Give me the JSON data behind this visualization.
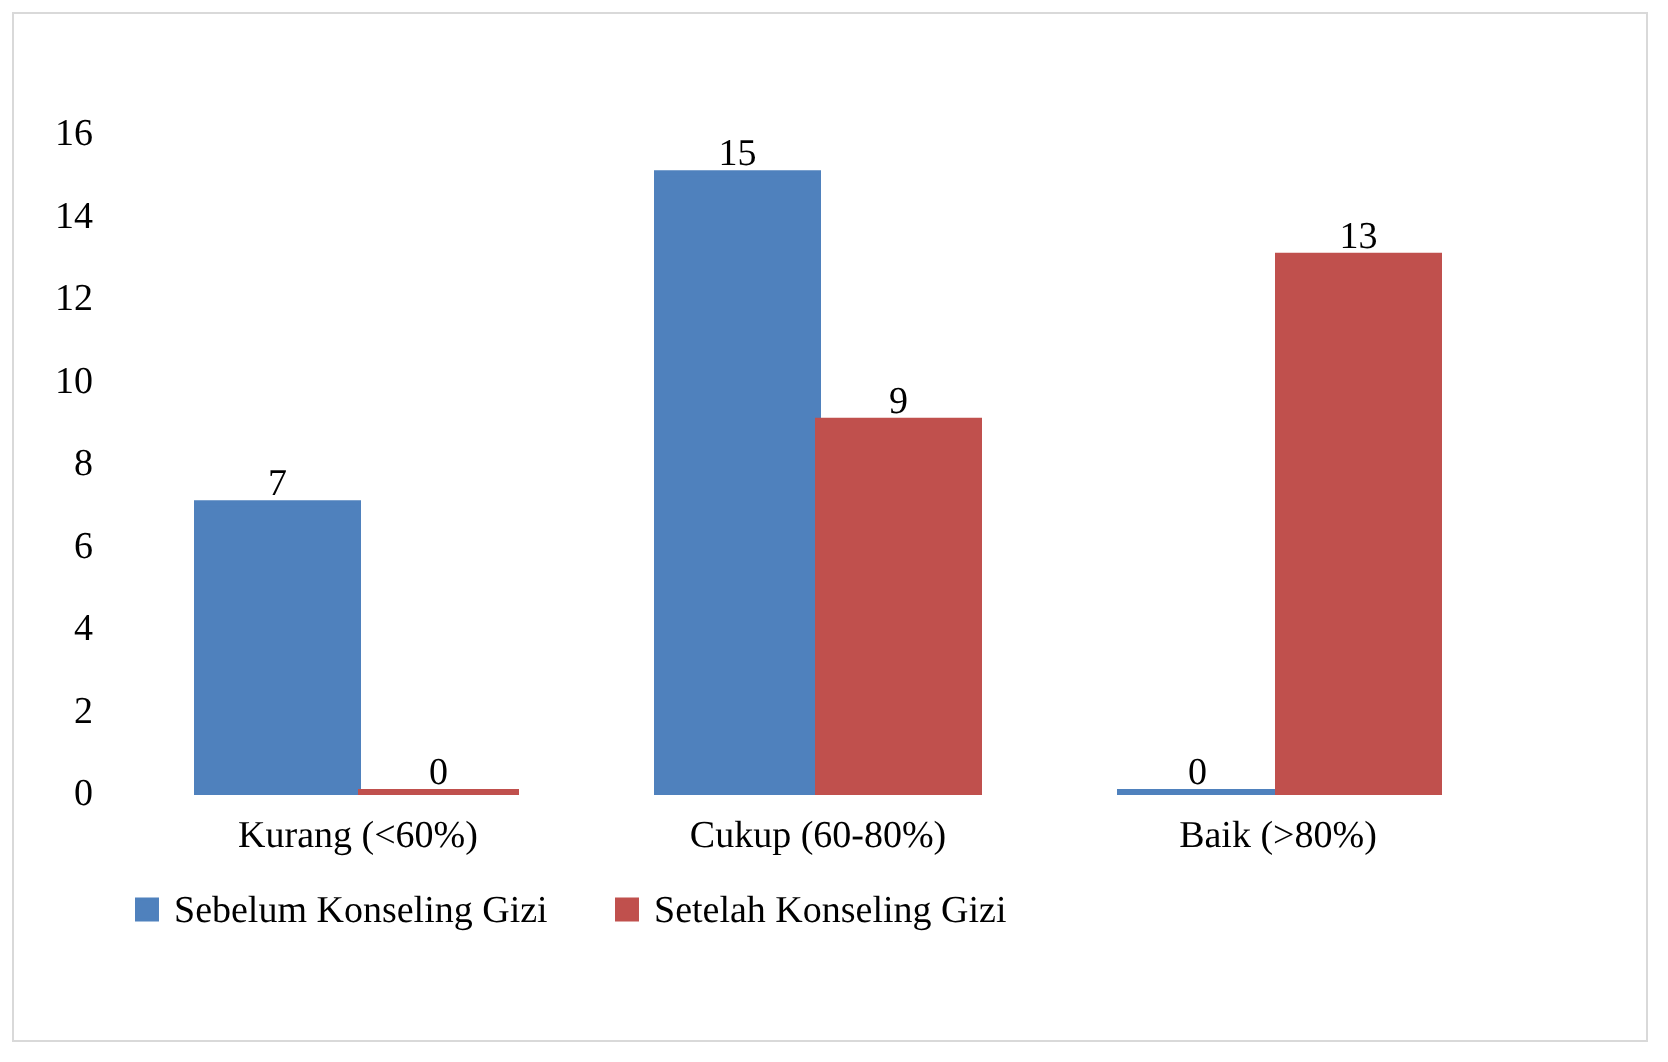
{
  "chart_data": {
    "type": "bar",
    "categories": [
      "Kurang (<60%)",
      "Cukup (60-80%)",
      "Baik (>80%)"
    ],
    "series": [
      {
        "name": "Sebelum Konseling Gizi",
        "color": "#4f81bd",
        "values": [
          7,
          15,
          0
        ]
      },
      {
        "name": "Setelah Konseling Gizi",
        "color": "#c0504d",
        "values": [
          0,
          9,
          13
        ]
      }
    ],
    "ylim": [
      0,
      16
    ],
    "yticks": [
      0,
      2,
      4,
      6,
      8,
      10,
      12,
      14,
      16
    ],
    "grid": false,
    "legend": "bottom",
    "data_labels": true
  }
}
